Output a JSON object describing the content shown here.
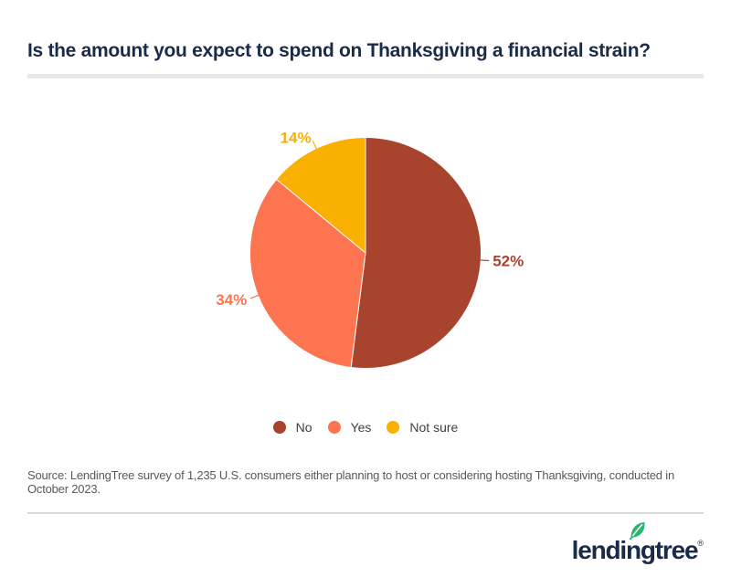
{
  "header": {
    "title": "Is the amount you expect to spend on Thanksgiving a financial strain?"
  },
  "chart_data": {
    "type": "pie",
    "title": "Is the amount you expect to spend on Thanksgiving a financial strain?",
    "slices": [
      {
        "label": "No",
        "value": 52,
        "data_label": "52%",
        "color": "#A8442E"
      },
      {
        "label": "Yes",
        "value": 34,
        "data_label": "34%",
        "color": "#FC7450"
      },
      {
        "label": "Not sure",
        "value": 14,
        "data_label": "14%",
        "color": "#F9B000"
      }
    ],
    "start_angle_deg": 0,
    "direction": "clockwise",
    "legend_position": "bottom",
    "data_labels": "outside-with-leader-lines",
    "slice_border_color": "#FFFFFF"
  },
  "source_note": "Source: LendingTree survey of 1,235 U.S. consumers either planning to host or considering hosting Thanksgiving, conducted in October 2023.",
  "footer": {
    "logo_text": "lendingtree",
    "registered_mark": "®",
    "leaf_icon": "leaf-icon",
    "logo_color": "#1A2B49",
    "leaf_color": "#2BB673"
  },
  "colors": {
    "background": "#FFFFFF",
    "title_text": "#1A2B49",
    "legend_text": "#3F3F3F",
    "source_text": "#595959",
    "divider_top": "#E7E7E7",
    "divider_bottom": "#DADADA"
  }
}
